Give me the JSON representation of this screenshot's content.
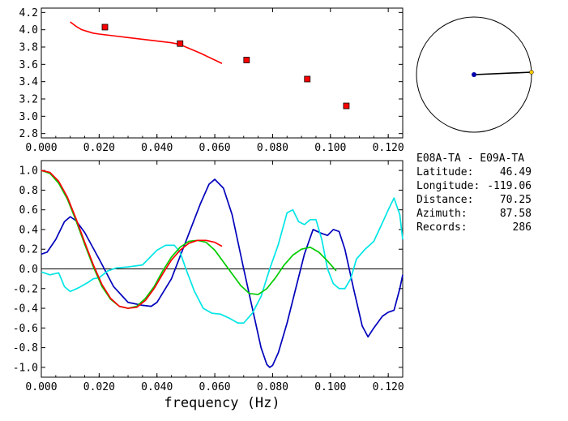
{
  "chart_data": [
    {
      "type": "line",
      "title": "",
      "xlabel": "",
      "ylabel": "",
      "xlim": [
        0.0,
        0.125
      ],
      "ylim": [
        2.75,
        4.25
      ],
      "xticks": [
        "0.000",
        "0.020",
        "0.040",
        "0.060",
        "0.080",
        "0.100",
        "0.120"
      ],
      "yticks": [
        "2.8",
        "3.0",
        "3.2",
        "3.4",
        "3.6",
        "3.8",
        "4.0",
        "4.2"
      ],
      "grid": false,
      "series": [
        {
          "color": "#ff0000",
          "type": "line",
          "x": [
            0.01,
            0.012,
            0.014,
            0.016,
            0.018,
            0.02,
            0.025,
            0.03,
            0.035,
            0.04,
            0.045,
            0.048,
            0.05,
            0.055,
            0.06,
            0.0625
          ],
          "y": [
            4.09,
            4.04,
            4.0,
            3.98,
            3.96,
            3.95,
            3.93,
            3.91,
            3.89,
            3.87,
            3.85,
            3.83,
            3.8,
            3.73,
            3.65,
            3.61
          ]
        },
        {
          "color": "#ff0000",
          "type": "scatter",
          "x": [
            0.022,
            0.048,
            0.071,
            0.092,
            0.1055
          ],
          "y": [
            4.03,
            3.84,
            3.65,
            3.43,
            3.12
          ]
        }
      ]
    },
    {
      "type": "polar",
      "azimuth_deg": 87.58,
      "colors": {
        "circle": "#000000",
        "line": "#000000",
        "center_dot": "#0000aa",
        "edge_dot": "#ffcc00"
      }
    },
    {
      "type": "line",
      "title": "",
      "xlabel": "frequency (Hz)",
      "ylabel": "",
      "xlim": [
        0.0,
        0.125
      ],
      "ylim": [
        -1.1,
        1.1
      ],
      "xticks": [
        "0.000",
        "0.020",
        "0.040",
        "0.060",
        "0.080",
        "0.100",
        "0.120"
      ],
      "yticks": [
        "-1.0",
        "-0.8",
        "-0.6",
        "-0.4",
        "-0.2",
        "0.0",
        "0.2",
        "0.4",
        "0.6",
        "0.8",
        "1.0"
      ],
      "grid": false,
      "zero_line": true,
      "series": [
        {
          "color": "#0000bb",
          "x": [
            0.0,
            0.002,
            0.005,
            0.008,
            0.01,
            0.012,
            0.015,
            0.02,
            0.025,
            0.03,
            0.035,
            0.038,
            0.04,
            0.045,
            0.05,
            0.055,
            0.058,
            0.06,
            0.063,
            0.066,
            0.07,
            0.073,
            0.076,
            0.078,
            0.079,
            0.08,
            0.082,
            0.085,
            0.088,
            0.091,
            0.094,
            0.097,
            0.099,
            0.101,
            0.103,
            0.105,
            0.108,
            0.111,
            0.113,
            0.115,
            0.118,
            0.12,
            0.122,
            0.124,
            0.125
          ],
          "y": [
            0.15,
            0.17,
            0.3,
            0.48,
            0.53,
            0.49,
            0.37,
            0.1,
            -0.18,
            -0.34,
            -0.37,
            -0.38,
            -0.34,
            -0.1,
            0.28,
            0.66,
            0.86,
            0.91,
            0.82,
            0.55,
            0.0,
            -0.4,
            -0.8,
            -0.97,
            -1.0,
            -0.98,
            -0.85,
            -0.55,
            -0.2,
            0.15,
            0.4,
            0.36,
            0.34,
            0.4,
            0.38,
            0.2,
            -0.2,
            -0.58,
            -0.69,
            -0.6,
            -0.48,
            -0.44,
            -0.42,
            -0.2,
            -0.06
          ]
        },
        {
          "color": "#00e5e5",
          "x": [
            0.0,
            0.003,
            0.006,
            0.008,
            0.01,
            0.013,
            0.016,
            0.018,
            0.02,
            0.023,
            0.026,
            0.03,
            0.035,
            0.038,
            0.04,
            0.043,
            0.046,
            0.048,
            0.05,
            0.053,
            0.056,
            0.059,
            0.062,
            0.065,
            0.068,
            0.07,
            0.073,
            0.076,
            0.079,
            0.082,
            0.085,
            0.087,
            0.089,
            0.091,
            0.093,
            0.095,
            0.097,
            0.099,
            0.101,
            0.103,
            0.105,
            0.107,
            0.109,
            0.112,
            0.115,
            0.118,
            0.12,
            0.122,
            0.124,
            0.125
          ],
          "y": [
            -0.03,
            -0.06,
            -0.04,
            -0.18,
            -0.23,
            -0.19,
            -0.14,
            -0.1,
            -0.09,
            -0.02,
            0.01,
            0.02,
            0.04,
            0.13,
            0.19,
            0.24,
            0.24,
            0.17,
            0.0,
            -0.23,
            -0.4,
            -0.45,
            -0.46,
            -0.5,
            -0.55,
            -0.55,
            -0.45,
            -0.28,
            0.0,
            0.25,
            0.57,
            0.6,
            0.48,
            0.45,
            0.5,
            0.5,
            0.3,
            0.0,
            -0.15,
            -0.2,
            -0.2,
            -0.1,
            0.1,
            0.2,
            0.28,
            0.47,
            0.6,
            0.72,
            0.55,
            0.3
          ]
        },
        {
          "color": "#00cc00",
          "x": [
            0.0,
            0.003,
            0.006,
            0.009,
            0.012,
            0.015,
            0.018,
            0.021,
            0.024,
            0.027,
            0.03,
            0.033,
            0.036,
            0.039,
            0.042,
            0.045,
            0.048,
            0.051,
            0.054,
            0.057,
            0.06,
            0.063,
            0.066,
            0.069,
            0.072,
            0.075,
            0.078,
            0.081,
            0.084,
            0.087,
            0.09,
            0.093,
            0.096,
            0.099,
            0.102
          ],
          "y": [
            1.0,
            0.97,
            0.87,
            0.71,
            0.49,
            0.25,
            0.02,
            -0.18,
            -0.31,
            -0.38,
            -0.4,
            -0.38,
            -0.3,
            -0.18,
            -0.02,
            0.12,
            0.22,
            0.28,
            0.29,
            0.27,
            0.19,
            0.07,
            -0.05,
            -0.17,
            -0.25,
            -0.26,
            -0.2,
            -0.09,
            0.04,
            0.14,
            0.2,
            0.22,
            0.17,
            0.08,
            -0.02
          ]
        },
        {
          "color": "#ff0000",
          "x": [
            0.0,
            0.003,
            0.006,
            0.009,
            0.012,
            0.015,
            0.018,
            0.021,
            0.024,
            0.027,
            0.03,
            0.033,
            0.036,
            0.039,
            0.042,
            0.045,
            0.048,
            0.051,
            0.054,
            0.057,
            0.06,
            0.0625
          ],
          "y": [
            1.0,
            0.98,
            0.89,
            0.73,
            0.51,
            0.27,
            0.04,
            -0.16,
            -0.3,
            -0.38,
            -0.4,
            -0.39,
            -0.32,
            -0.2,
            -0.05,
            0.09,
            0.19,
            0.26,
            0.29,
            0.29,
            0.27,
            0.23
          ]
        }
      ]
    }
  ],
  "info": {
    "station_pair": "E08A-TA - E09A-TA",
    "rows": [
      {
        "label": "Latitude:",
        "value": "46.49"
      },
      {
        "label": "Longitude:",
        "value": "-119.06"
      },
      {
        "label": "Distance:",
        "value": "70.25"
      },
      {
        "label": "Azimuth:",
        "value": "87.58"
      },
      {
        "label": "Records:",
        "value": "286"
      }
    ]
  }
}
